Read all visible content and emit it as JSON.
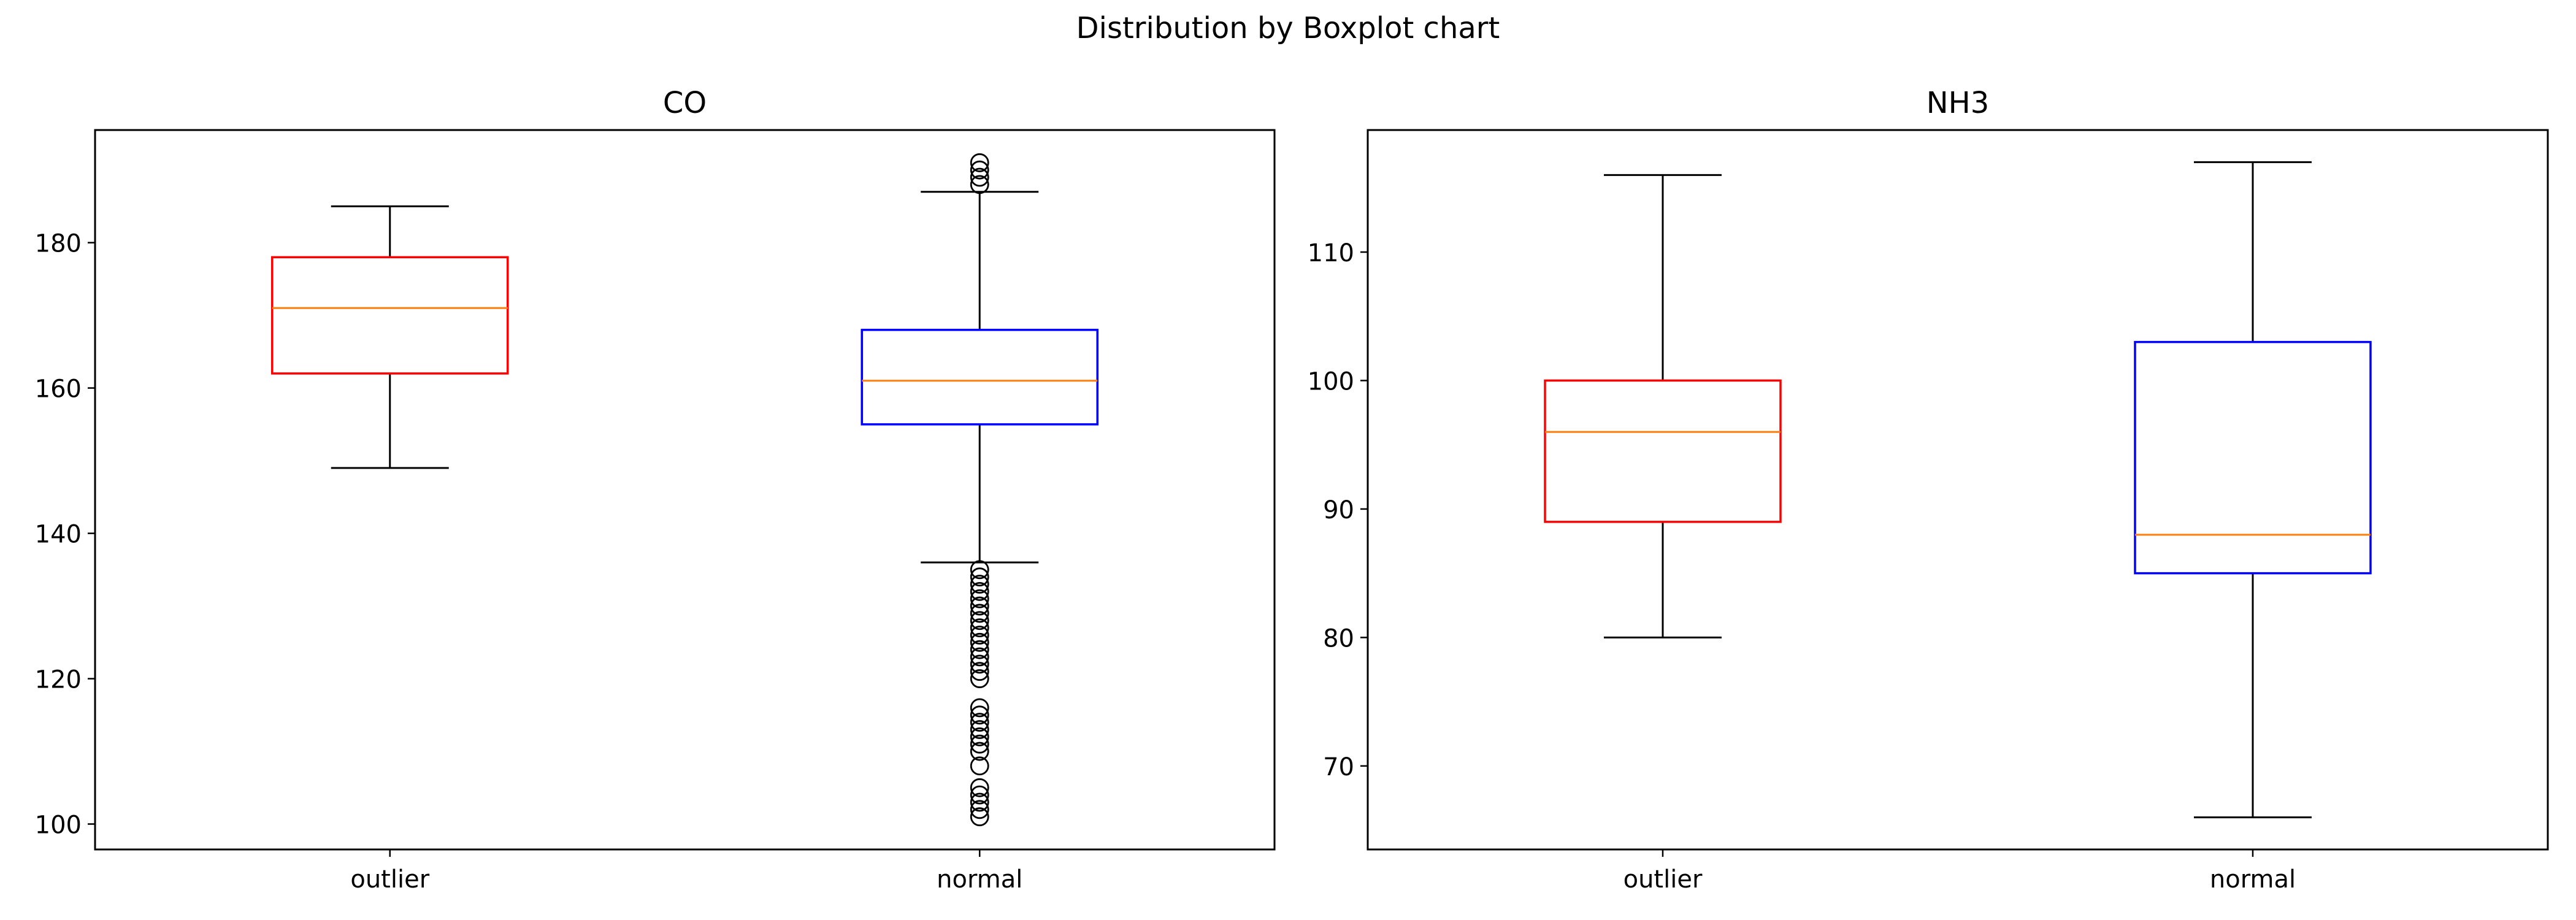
{
  "figure": {
    "title": "Distribution by Boxplot chart"
  },
  "chart_data": [
    {
      "type": "boxplot",
      "title": "CO",
      "xlabel": "",
      "ylabel": "",
      "ylim": [
        96.5,
        195.5
      ],
      "yticks": [
        100,
        120,
        140,
        160,
        180
      ],
      "grid": false,
      "categories": [
        "outlier",
        "normal"
      ],
      "boxes": [
        {
          "category": "outlier",
          "box_color": "#ff0000",
          "whisker_low": 149,
          "q1": 162,
          "median": 171,
          "q3": 178,
          "whisker_high": 185,
          "fliers": []
        },
        {
          "category": "normal",
          "box_color": "#0000ff",
          "whisker_low": 136,
          "q1": 155,
          "median": 161,
          "q3": 168,
          "whisker_high": 187,
          "fliers": [
            101,
            102,
            103,
            104,
            105,
            108,
            110,
            111,
            112,
            113,
            114,
            115,
            116,
            120,
            121,
            122,
            123,
            124,
            125,
            126,
            127,
            128,
            129,
            130,
            131,
            132,
            133,
            134,
            135,
            188,
            189,
            190,
            191
          ]
        }
      ]
    },
    {
      "type": "boxplot",
      "title": "NH3",
      "xlabel": "",
      "ylabel": "",
      "ylim": [
        63.5,
        119.5
      ],
      "yticks": [
        70,
        80,
        90,
        100,
        110
      ],
      "grid": false,
      "categories": [
        "outlier",
        "normal"
      ],
      "boxes": [
        {
          "category": "outlier",
          "box_color": "#ff0000",
          "whisker_low": 80,
          "q1": 89,
          "median": 96,
          "q3": 100,
          "whisker_high": 116,
          "fliers": []
        },
        {
          "category": "normal",
          "box_color": "#0000ff",
          "whisker_low": 66,
          "q1": 85,
          "median": 88,
          "q3": 103,
          "whisker_high": 117,
          "fliers": []
        }
      ]
    }
  ],
  "colors": {
    "median": "#ff7f0e",
    "whisker": "#000000",
    "axes": "#000000"
  }
}
